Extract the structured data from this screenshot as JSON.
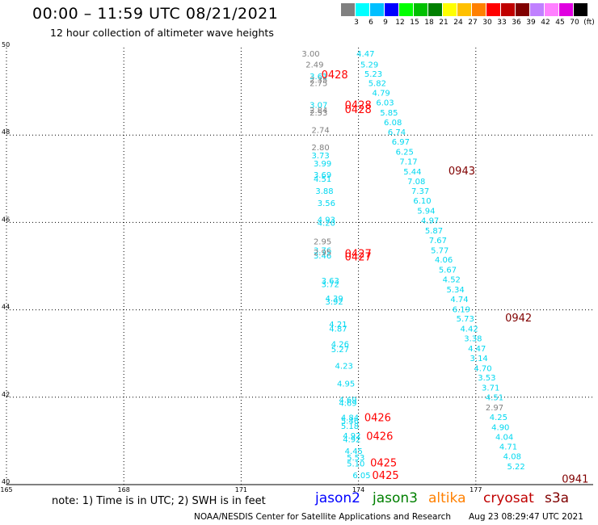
{
  "header": {
    "title": "00:00 – 11:59 UTC 08/21/2021",
    "subtitle": "12 hour collection of altimeter wave heights"
  },
  "color_scale": {
    "swatches": [
      "#808080",
      "#00ffff",
      "#00bfff",
      "#0000ff",
      "#00ff00",
      "#00c000",
      "#008000",
      "#ffff00",
      "#ffc000",
      "#ff8000",
      "#ff0000",
      "#c00000",
      "#800000",
      "#c080ff",
      "#ff80ff",
      "#e000e0",
      "#000000"
    ],
    "labels": [
      "3",
      "6",
      "9",
      "12",
      "15",
      "18",
      "21",
      "24",
      "27",
      "30",
      "33",
      "36",
      "39",
      "42",
      "45",
      "70",
      "(ft)"
    ]
  },
  "footer": {
    "note": "note: 1) Time is in UTC; 2) SWH is in feet",
    "satellites": [
      {
        "name": "jason2",
        "color": "#0000ff"
      },
      {
        "name": "jason3",
        "color": "#008000"
      },
      {
        "name": "altika",
        "color": "#ff8000"
      },
      {
        "name": "cryosat",
        "color": "#c00000"
      },
      {
        "name": "s3a",
        "color": "#800000"
      }
    ],
    "credit": "NOAA/NESDIS Center for Satellite Applications and Research",
    "timestamp": "Aug 23 08:29:47 UTC 2021"
  },
  "chart_data": {
    "type": "scatter",
    "xlim": [
      165,
      180
    ],
    "ylim": [
      40,
      50
    ],
    "x_ticks": [
      165,
      168,
      171,
      174,
      177
    ],
    "x_tick_labels": [
      "165",
      "168",
      "171",
      "174",
      "177"
    ],
    "y_ticks": [
      40,
      42,
      44,
      46,
      48,
      50
    ],
    "y_tick_labels": [
      "40",
      "42",
      "44",
      "46",
      "48",
      "50"
    ],
    "grid": true,
    "series": [
      {
        "color": "#00d8f0",
        "points": [
          {
            "x": 173.95,
            "y": 49.8,
            "label": "4.47"
          },
          {
            "x": 174.05,
            "y": 49.55,
            "label": "5.29"
          },
          {
            "x": 174.15,
            "y": 49.33,
            "label": "5.23"
          },
          {
            "x": 174.25,
            "y": 49.12,
            "label": "5.82"
          },
          {
            "x": 174.35,
            "y": 48.9,
            "label": "4.79"
          },
          {
            "x": 174.45,
            "y": 48.68,
            "label": "6.03"
          },
          {
            "x": 174.55,
            "y": 48.45,
            "label": "5.85"
          },
          {
            "x": 174.65,
            "y": 48.23,
            "label": "6.08"
          },
          {
            "x": 174.75,
            "y": 48.0,
            "label": "6.74"
          },
          {
            "x": 174.85,
            "y": 47.78,
            "label": "6.97"
          },
          {
            "x": 174.95,
            "y": 47.55,
            "label": "6.25"
          },
          {
            "x": 175.05,
            "y": 47.33,
            "label": "7.17"
          },
          {
            "x": 175.15,
            "y": 47.1,
            "label": "5.44"
          },
          {
            "x": 175.25,
            "y": 46.88,
            "label": "7.08"
          },
          {
            "x": 175.35,
            "y": 46.65,
            "label": "7.37"
          },
          {
            "x": 175.4,
            "y": 46.43,
            "label": "6.10"
          },
          {
            "x": 175.5,
            "y": 46.2,
            "label": "5.94"
          },
          {
            "x": 175.6,
            "y": 45.98,
            "label": "4.97"
          },
          {
            "x": 175.7,
            "y": 45.75,
            "label": "5.87"
          },
          {
            "x": 175.8,
            "y": 45.53,
            "label": "7.67"
          },
          {
            "x": 175.85,
            "y": 45.3,
            "label": "5.77"
          },
          {
            "x": 175.95,
            "y": 45.08,
            "label": "4.06"
          },
          {
            "x": 176.05,
            "y": 44.85,
            "label": "5.67"
          },
          {
            "x": 176.15,
            "y": 44.63,
            "label": "4.52"
          },
          {
            "x": 176.25,
            "y": 44.4,
            "label": "5.34"
          },
          {
            "x": 176.35,
            "y": 44.18,
            "label": "4.74"
          },
          {
            "x": 176.4,
            "y": 43.95,
            "label": "6.19"
          },
          {
            "x": 176.5,
            "y": 43.73,
            "label": "5.73"
          },
          {
            "x": 176.6,
            "y": 43.5,
            "label": "4.42"
          },
          {
            "x": 176.7,
            "y": 43.28,
            "label": "3.38"
          },
          {
            "x": 176.8,
            "y": 43.05,
            "label": "4.47"
          },
          {
            "x": 176.85,
            "y": 42.83,
            "label": "3.14"
          },
          {
            "x": 176.95,
            "y": 42.6,
            "label": "4.70"
          },
          {
            "x": 177.05,
            "y": 42.38,
            "label": "3.53"
          },
          {
            "x": 177.15,
            "y": 42.15,
            "label": "3.71"
          },
          {
            "x": 177.25,
            "y": 41.93,
            "label": "4.51"
          },
          {
            "x": 177.35,
            "y": 41.48,
            "label": "4.25"
          },
          {
            "x": 177.4,
            "y": 41.25,
            "label": "4.90"
          },
          {
            "x": 177.5,
            "y": 41.03,
            "label": "4.04"
          },
          {
            "x": 177.6,
            "y": 40.8,
            "label": "4.71"
          },
          {
            "x": 177.7,
            "y": 40.58,
            "label": "4.08"
          },
          {
            "x": 177.8,
            "y": 40.35,
            "label": "5.22"
          },
          {
            "x": 172.75,
            "y": 49.28,
            "label": "3.61"
          },
          {
            "x": 172.75,
            "y": 48.62,
            "label": "3.07"
          },
          {
            "x": 172.8,
            "y": 47.47,
            "label": "3.73"
          },
          {
            "x": 172.85,
            "y": 47.28,
            "label": "3.99"
          },
          {
            "x": 172.85,
            "y": 47.02,
            "label": "3.69"
          },
          {
            "x": 172.85,
            "y": 46.93,
            "label": "4.51"
          },
          {
            "x": 172.9,
            "y": 46.65,
            "label": "3.88"
          },
          {
            "x": 172.95,
            "y": 46.38,
            "label": "3.56"
          },
          {
            "x": 172.95,
            "y": 46.0,
            "label": "4.93"
          },
          {
            "x": 172.95,
            "y": 45.92,
            "label": "4.20"
          },
          {
            "x": 172.85,
            "y": 45.3,
            "label": "3.76"
          },
          {
            "x": 172.85,
            "y": 45.18,
            "label": "3.46"
          },
          {
            "x": 173.05,
            "y": 44.6,
            "label": "3.63"
          },
          {
            "x": 173.05,
            "y": 44.52,
            "label": "3.72"
          },
          {
            "x": 173.15,
            "y": 44.2,
            "label": "4.39"
          },
          {
            "x": 173.15,
            "y": 44.12,
            "label": "3.92"
          },
          {
            "x": 173.25,
            "y": 43.6,
            "label": "4.21"
          },
          {
            "x": 173.25,
            "y": 43.5,
            "label": "4.87"
          },
          {
            "x": 173.3,
            "y": 43.15,
            "label": "4.26"
          },
          {
            "x": 173.3,
            "y": 43.03,
            "label": "5.27"
          },
          {
            "x": 173.4,
            "y": 42.65,
            "label": "4.23"
          },
          {
            "x": 173.45,
            "y": 42.25,
            "label": "4.95"
          },
          {
            "x": 173.5,
            "y": 41.88,
            "label": "4.69"
          },
          {
            "x": 173.5,
            "y": 41.8,
            "label": "4.69"
          },
          {
            "x": 173.55,
            "y": 41.47,
            "label": "4.84"
          },
          {
            "x": 173.55,
            "y": 41.4,
            "label": "5.46"
          },
          {
            "x": 173.55,
            "y": 41.28,
            "label": "5.18"
          },
          {
            "x": 173.6,
            "y": 41.05,
            "label": "4.92"
          },
          {
            "x": 173.6,
            "y": 40.97,
            "label": "4.92"
          },
          {
            "x": 173.65,
            "y": 40.7,
            "label": "4.45"
          },
          {
            "x": 173.7,
            "y": 40.55,
            "label": "5.53"
          },
          {
            "x": 173.7,
            "y": 40.42,
            "label": "5.10"
          },
          {
            "x": 173.85,
            "y": 40.15,
            "label": "6.05"
          }
        ]
      },
      {
        "color": "#808080",
        "points": [
          {
            "x": 172.55,
            "y": 49.8,
            "label": "3.00"
          },
          {
            "x": 172.65,
            "y": 49.55,
            "label": "2.49"
          },
          {
            "x": 172.75,
            "y": 49.2,
            "label": "2.35"
          },
          {
            "x": 172.75,
            "y": 49.12,
            "label": "2.75"
          },
          {
            "x": 172.75,
            "y": 48.5,
            "label": "2.84"
          },
          {
            "x": 172.75,
            "y": 48.45,
            "label": "2.53"
          },
          {
            "x": 172.8,
            "y": 48.05,
            "label": "2.74"
          },
          {
            "x": 172.8,
            "y": 47.65,
            "label": "2.80"
          },
          {
            "x": 172.85,
            "y": 45.5,
            "label": "2.95"
          },
          {
            "x": 172.85,
            "y": 45.25,
            "label": "2.95"
          },
          {
            "x": 177.25,
            "y": 41.7,
            "label": "2.97"
          }
        ]
      },
      {
        "color": "#ff0000",
        "points": [
          {
            "x": 173.05,
            "y": 49.3,
            "label": "0428"
          },
          {
            "x": 173.65,
            "y": 48.6,
            "label": "0428"
          },
          {
            "x": 173.65,
            "y": 48.5,
            "label": "0428"
          },
          {
            "x": 173.65,
            "y": 45.2,
            "label": "0427"
          },
          {
            "x": 173.65,
            "y": 45.13,
            "label": "0427"
          },
          {
            "x": 174.15,
            "y": 41.45,
            "label": "0426"
          },
          {
            "x": 174.2,
            "y": 41.03,
            "label": "0426"
          },
          {
            "x": 174.3,
            "y": 40.42,
            "label": "0425"
          },
          {
            "x": 174.35,
            "y": 40.13,
            "label": "0425"
          }
        ]
      },
      {
        "color": "#800000",
        "points": [
          {
            "x": 176.3,
            "y": 47.1,
            "label": "0943"
          },
          {
            "x": 177.75,
            "y": 43.73,
            "label": "0942"
          },
          {
            "x": 179.2,
            "y": 40.05,
            "label": "0941"
          }
        ]
      }
    ]
  }
}
